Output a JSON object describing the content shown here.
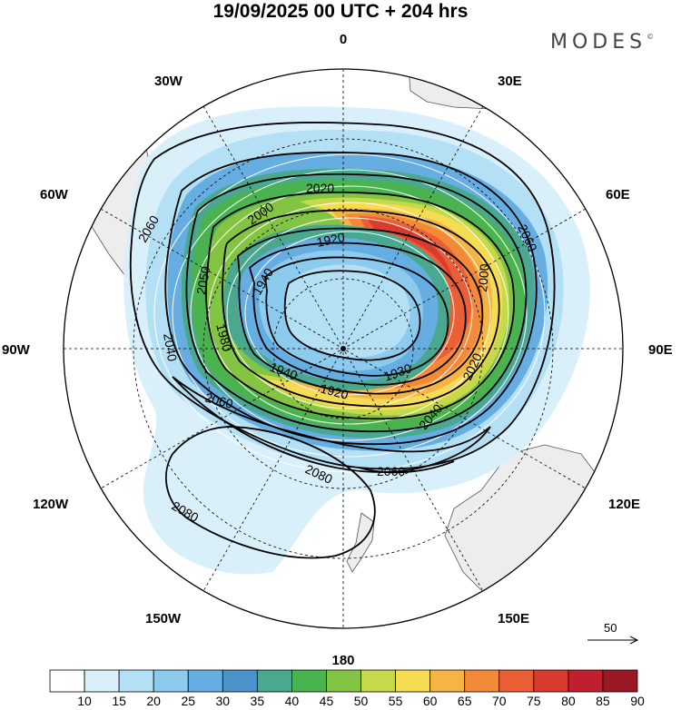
{
  "title": "19/09/2025  00 UTC  + 204 hrs",
  "brand": "MODES",
  "brand_mark": "©",
  "longitude_labels": {
    "top": "0",
    "top_right": "30E",
    "right_upper": "60E",
    "right": "90E",
    "right_lower": "120E",
    "bottom_right": "150E",
    "bottom": "180",
    "bottom_left": "150W",
    "left_lower": "120W",
    "left": "90W",
    "left_upper": "60W",
    "top_left": "30W"
  },
  "contour_labels": [
    "2020",
    "2000",
    "1920",
    "1940",
    "2060",
    "2060",
    "2050",
    "2040",
    "1980",
    "1940",
    "1920",
    "1930",
    "2000",
    "2020",
    "2040",
    "2060",
    "2060",
    "2080",
    "2080"
  ],
  "reference_vector": "50",
  "colorbar": {
    "labels": [
      "10",
      "15",
      "20",
      "25",
      "30",
      "35",
      "40",
      "45",
      "50",
      "55",
      "60",
      "65",
      "70",
      "75",
      "80",
      "85",
      "90"
    ],
    "colors": [
      "#ffffff",
      "#d9f0fb",
      "#b4e0f5",
      "#8ccbee",
      "#66aee2",
      "#4b93c9",
      "#4aa88f",
      "#4ab34f",
      "#84c443",
      "#c6d94b",
      "#f5dc52",
      "#f6b346",
      "#f28a3a",
      "#ea5f36",
      "#d93b31",
      "#c01f2e",
      "#9a1822"
    ]
  },
  "colors": {
    "land": "#ededed",
    "land_edge": "#555555",
    "contour": "#000000",
    "grid": "#000000"
  }
}
